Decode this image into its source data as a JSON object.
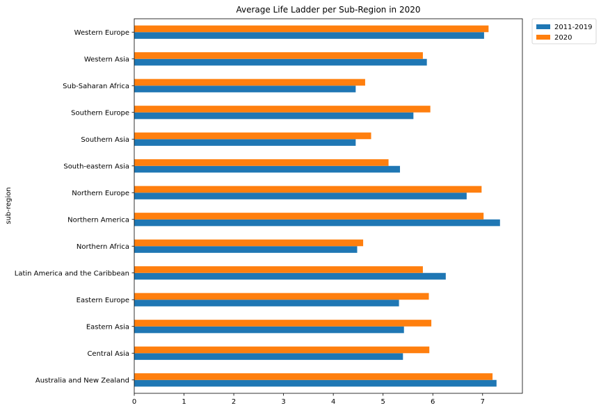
{
  "chart_data": {
    "type": "bar",
    "orientation": "horizontal",
    "title": "Average Life Ladder per Sub-Region in 2020",
    "xlabel": "",
    "ylabel": "sub-region",
    "xlim": [
      0,
      7.8
    ],
    "xticks": [
      "0",
      "1",
      "2",
      "3",
      "4",
      "5",
      "6",
      "7"
    ],
    "grid": false,
    "legend_position": "outside-top-right",
    "categories": [
      "Australia and New Zealand",
      "Central Asia",
      "Eastern Asia",
      "Eastern Europe",
      "Latin America and the Caribbean",
      "Northern Africa",
      "Northern America",
      "Northern Europe",
      "South-eastern Asia",
      "Southern Asia",
      "Southern Europe",
      "Sub-Saharan Africa",
      "Western Asia",
      "Western Europe"
    ],
    "series": [
      {
        "name": "2011-2019",
        "color": "#1f77b4",
        "values": [
          7.28,
          5.4,
          5.42,
          5.32,
          6.26,
          4.48,
          7.35,
          6.68,
          5.34,
          4.45,
          5.61,
          4.45,
          5.88,
          7.03
        ]
      },
      {
        "name": "2020",
        "color": "#ff7f0e",
        "values": [
          7.2,
          5.93,
          5.97,
          5.92,
          5.8,
          4.6,
          7.02,
          6.98,
          5.11,
          4.76,
          5.95,
          4.64,
          5.8,
          7.12
        ]
      }
    ]
  }
}
